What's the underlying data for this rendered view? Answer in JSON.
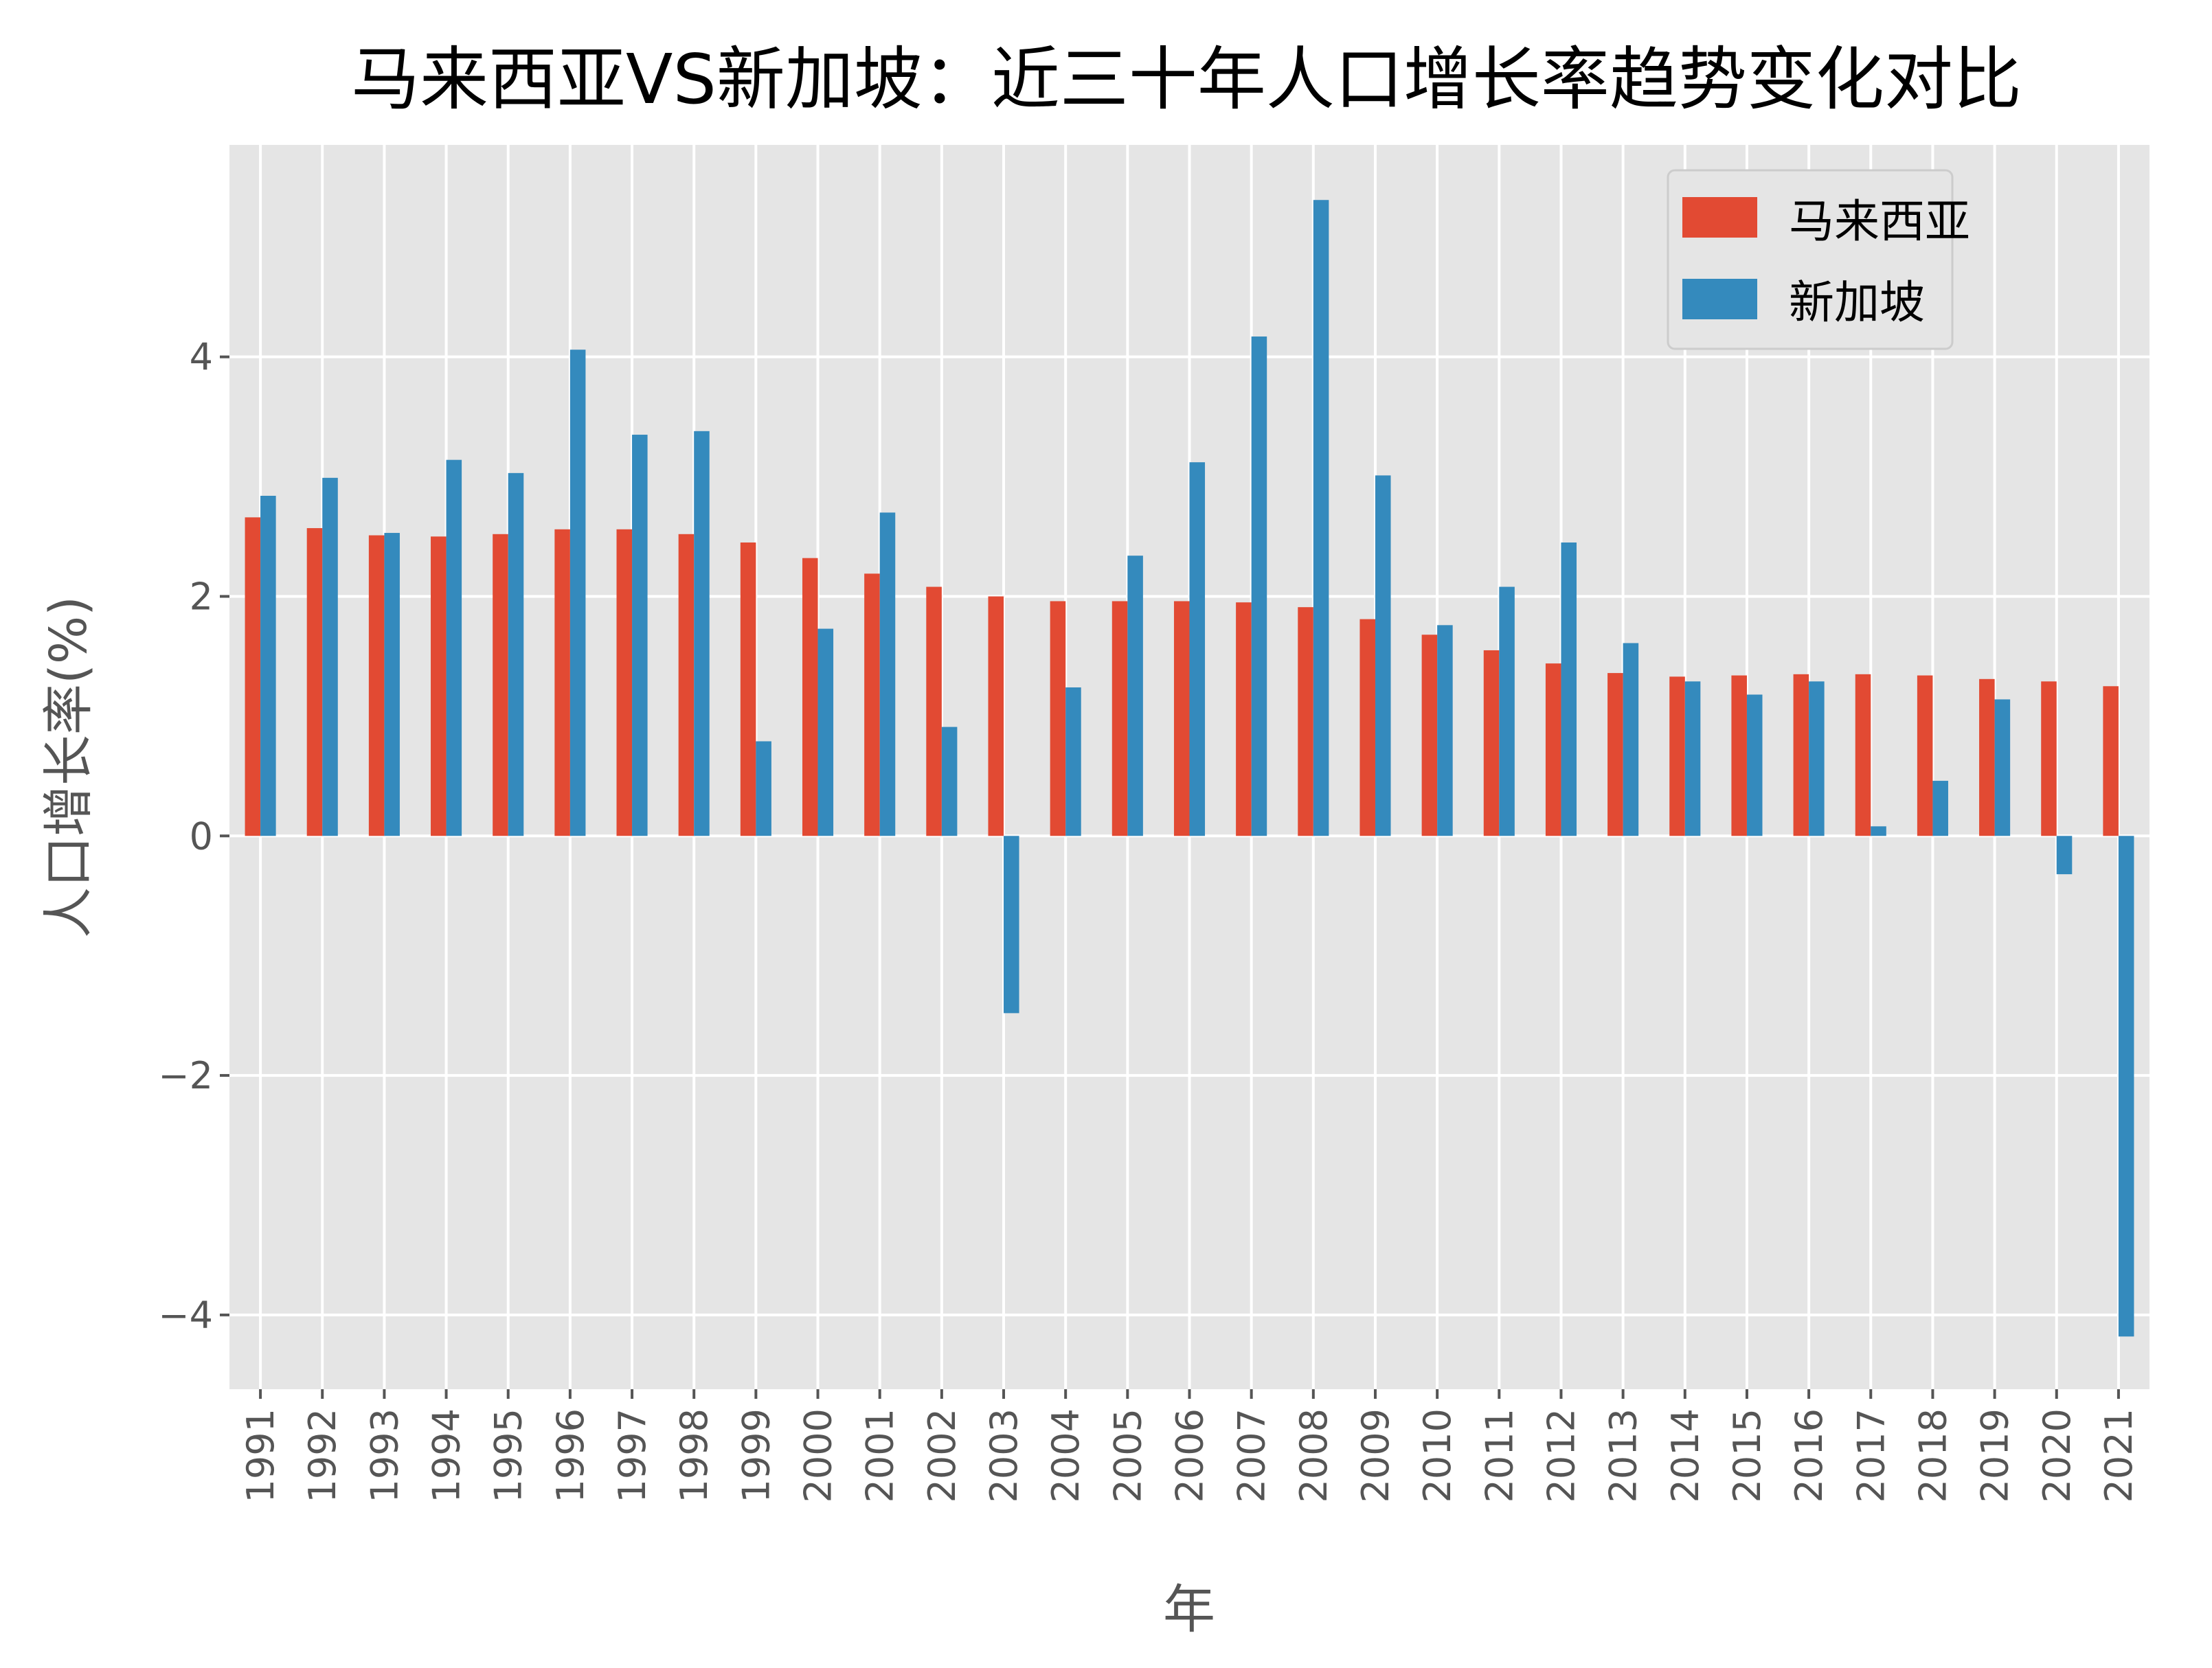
{
  "chart_data": {
    "type": "bar",
    "title": "马来西亚VS新加坡：近三十年人口增长率趋势变化对比",
    "xlabel": "年",
    "ylabel": "人口增长率(%)",
    "ylim": [
      -4.62,
      5.77
    ],
    "yticks": [
      -4,
      -2,
      0,
      2,
      4
    ],
    "ytick_labels": [
      "−4",
      "−2",
      "0",
      "2",
      "4"
    ],
    "grid": true,
    "legend_position": "top-right",
    "categories": [
      "1991",
      "1992",
      "1993",
      "1994",
      "1995",
      "1996",
      "1997",
      "1998",
      "1999",
      "2000",
      "2001",
      "2002",
      "2003",
      "2004",
      "2005",
      "2006",
      "2007",
      "2008",
      "2009",
      "2010",
      "2011",
      "2012",
      "2013",
      "2014",
      "2015",
      "2016",
      "2017",
      "2018",
      "2019",
      "2020",
      "2021"
    ],
    "series": [
      {
        "name": "马来西亚",
        "color": "#E24A33",
        "values": [
          2.66,
          2.57,
          2.51,
          2.5,
          2.52,
          2.56,
          2.56,
          2.52,
          2.45,
          2.32,
          2.19,
          2.08,
          2.0,
          1.96,
          1.96,
          1.96,
          1.95,
          1.91,
          1.81,
          1.68,
          1.55,
          1.44,
          1.36,
          1.33,
          1.34,
          1.35,
          1.35,
          1.34,
          1.31,
          1.29,
          1.25
        ]
      },
      {
        "name": "新加坡",
        "color": "#348ABD",
        "values": [
          2.84,
          2.99,
          2.53,
          3.14,
          3.03,
          4.06,
          3.35,
          3.38,
          0.79,
          1.73,
          2.7,
          0.91,
          -1.48,
          1.24,
          2.34,
          3.12,
          4.17,
          5.31,
          3.01,
          1.76,
          2.08,
          2.45,
          1.61,
          1.29,
          1.18,
          1.29,
          0.08,
          0.46,
          1.14,
          -0.32,
          -4.18
        ]
      }
    ]
  }
}
